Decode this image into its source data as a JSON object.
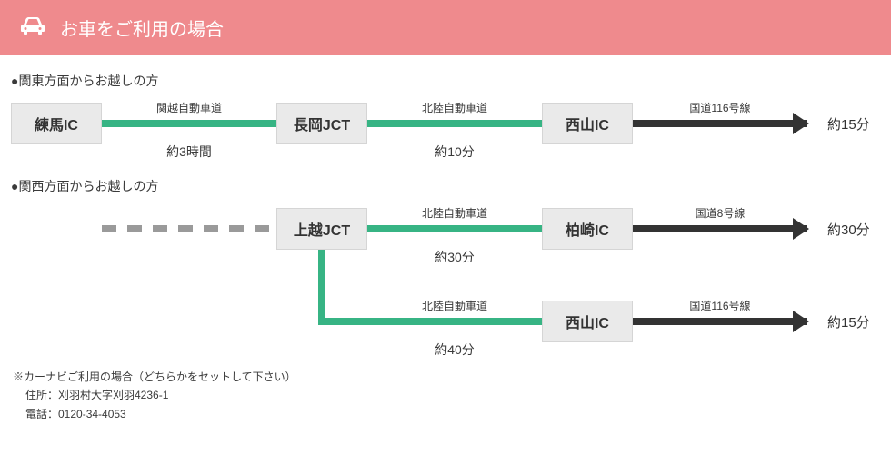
{
  "header": {
    "title": "お車をご利用の場合"
  },
  "colors": {
    "header_bg": "#ef8a8d",
    "node_bg": "#eaeaea",
    "green": "#37b484",
    "black": "#333333",
    "gray_dash": "#9a9a9a"
  },
  "section_kanto": {
    "title": "●関東方面からお越しの方",
    "nodes": [
      "練馬IC",
      "長岡JCT",
      "西山IC"
    ],
    "segments": [
      {
        "road": "関越自動車道",
        "duration": "約3時間",
        "style": "green"
      },
      {
        "road": "北陸自動車道",
        "duration": "約10分",
        "style": "green"
      },
      {
        "road": "国道116号線",
        "duration": "",
        "style": "black-arrow"
      }
    ],
    "end_time": "約15分"
  },
  "section_kansai": {
    "title": "●関西方面からお越しの方",
    "start_node": "上越JCT",
    "dashed_lead": true,
    "routes": [
      {
        "segments": [
          {
            "road": "北陸自動車道",
            "duration": "約30分",
            "style": "green"
          },
          {
            "road": "国道8号線",
            "duration": "",
            "style": "black-arrow"
          }
        ],
        "mid_node": "柏崎IC",
        "end_time": "約30分"
      },
      {
        "segments": [
          {
            "road": "北陸自動車道",
            "duration": "約40分",
            "style": "green"
          },
          {
            "road": "国道116号線",
            "duration": "",
            "style": "black-arrow"
          }
        ],
        "mid_node": "西山IC",
        "end_time": "約15分"
      }
    ]
  },
  "footer": {
    "line1": "※カーナビご利用の場合（どちらかをセットして下さい）",
    "line2": "住所：刈羽村大字刈羽4236-1",
    "line3": "電話：0120-34-4053"
  }
}
